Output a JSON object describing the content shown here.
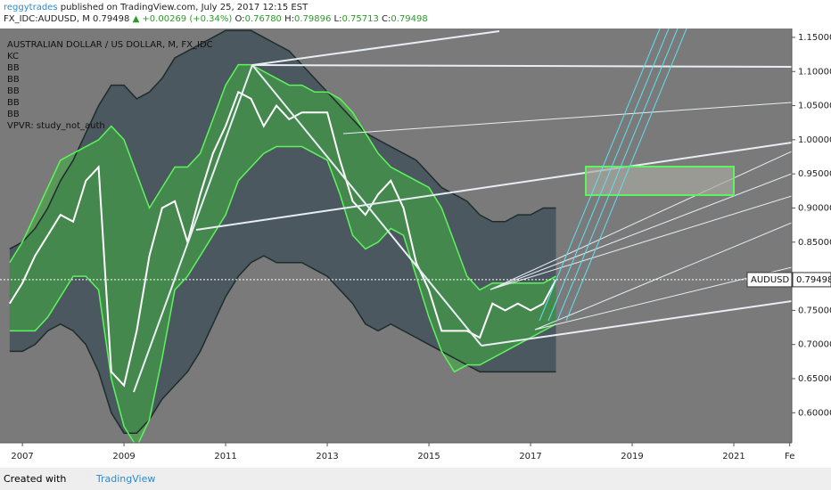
{
  "header": {
    "author": "reggytrades",
    "published": "published on TradingView.com, July 25, 2017 12:15 EST",
    "symbol": "FX_IDC:AUDUSD, M",
    "price": "0.79498",
    "change": "▲ +0.00269 (+0.34%)",
    "ohlc": [
      {
        "label": "O:",
        "value": "0.76780"
      },
      {
        "label": "H:",
        "value": "0.79896"
      },
      {
        "label": "L:",
        "value": "0.75713"
      },
      {
        "label": "C:",
        "value": "0.79498"
      }
    ]
  },
  "legend_panel": [
    "AUSTRALIAN DOLLAR / US DOLLAR, M, FX_IDC",
    "KC",
    "BB",
    "BB",
    "BB",
    "BB",
    "BB",
    "VPVR: study_not_auth"
  ],
  "chart_data": {
    "type": "line",
    "x": [
      2006.75,
      2007,
      2007.25,
      2007.5,
      2007.75,
      2008,
      2008.25,
      2008.5,
      2008.75,
      2009,
      2009.25,
      2009.5,
      2009.75,
      2010,
      2010.25,
      2010.5,
      2010.75,
      2011,
      2011.25,
      2011.5,
      2011.75,
      2012,
      2012.25,
      2012.5,
      2012.75,
      2013,
      2013.25,
      2013.5,
      2013.75,
      2014,
      2014.25,
      2014.5,
      2014.75,
      2015,
      2015.25,
      2015.5,
      2015.75,
      2016,
      2016.25,
      2016.5,
      2016.75,
      2017,
      2017.25,
      2017.5
    ],
    "series": [
      {
        "name": "KC upper",
        "color": "#1e2c2c",
        "values": [
          0.84,
          0.85,
          0.87,
          0.9,
          0.94,
          0.97,
          1.01,
          1.05,
          1.08,
          1.08,
          1.06,
          1.07,
          1.09,
          1.12,
          1.13,
          1.14,
          1.15,
          1.16,
          1.16,
          1.16,
          1.15,
          1.14,
          1.13,
          1.11,
          1.09,
          1.07,
          1.05,
          1.03,
          1.01,
          1.0,
          0.99,
          0.98,
          0.97,
          0.95,
          0.93,
          0.92,
          0.91,
          0.89,
          0.88,
          0.88,
          0.89,
          0.89,
          0.9,
          0.9
        ]
      },
      {
        "name": "KC lower",
        "color": "#1e2c2c",
        "values": [
          0.69,
          0.69,
          0.7,
          0.72,
          0.73,
          0.72,
          0.7,
          0.66,
          0.6,
          0.57,
          0.57,
          0.59,
          0.62,
          0.64,
          0.66,
          0.69,
          0.73,
          0.77,
          0.8,
          0.82,
          0.83,
          0.82,
          0.82,
          0.82,
          0.81,
          0.8,
          0.78,
          0.76,
          0.73,
          0.72,
          0.73,
          0.72,
          0.71,
          0.7,
          0.69,
          0.68,
          0.67,
          0.66,
          0.66,
          0.66,
          0.66,
          0.66,
          0.66,
          0.66
        ]
      },
      {
        "name": "BB upper",
        "color": "#5cf55c",
        "values": [
          0.82,
          0.85,
          0.89,
          0.93,
          0.97,
          0.98,
          0.99,
          1.0,
          1.02,
          1.0,
          0.95,
          0.9,
          0.93,
          0.96,
          0.96,
          0.98,
          1.03,
          1.08,
          1.11,
          1.11,
          1.1,
          1.09,
          1.08,
          1.08,
          1.07,
          1.07,
          1.06,
          1.04,
          1.01,
          0.98,
          0.96,
          0.95,
          0.94,
          0.93,
          0.9,
          0.85,
          0.8,
          0.78,
          0.79,
          0.79,
          0.79,
          0.79,
          0.79,
          0.8
        ]
      },
      {
        "name": "BB lower",
        "color": "#5cf55c",
        "values": [
          0.72,
          0.72,
          0.72,
          0.74,
          0.77,
          0.8,
          0.8,
          0.78,
          0.65,
          0.58,
          0.55,
          0.59,
          0.68,
          0.78,
          0.8,
          0.83,
          0.86,
          0.89,
          0.94,
          0.96,
          0.98,
          0.99,
          0.99,
          0.99,
          0.98,
          0.97,
          0.92,
          0.86,
          0.84,
          0.85,
          0.87,
          0.86,
          0.8,
          0.74,
          0.69,
          0.66,
          0.67,
          0.67,
          0.68,
          0.69,
          0.7,
          0.71,
          0.72,
          0.73
        ]
      },
      {
        "name": "AUDUSD",
        "color": "#ffffff",
        "values": [
          0.76,
          0.79,
          0.83,
          0.86,
          0.89,
          0.88,
          0.94,
          0.96,
          0.66,
          0.64,
          0.72,
          0.83,
          0.9,
          0.91,
          0.85,
          0.92,
          0.98,
          1.02,
          1.07,
          1.06,
          1.02,
          1.05,
          1.03,
          1.04,
          1.04,
          1.04,
          0.97,
          0.91,
          0.89,
          0.92,
          0.94,
          0.9,
          0.82,
          0.78,
          0.72,
          0.72,
          0.72,
          0.71,
          0.76,
          0.75,
          0.76,
          0.75,
          0.76,
          0.795
        ]
      }
    ],
    "xlim": [
      2006.56,
      2022.14
    ],
    "xticks": [
      2007,
      2009,
      2011,
      2013,
      2015,
      2017,
      2019,
      2021,
      {
        "value": 2022.1,
        "label": "Fe"
      }
    ],
    "ylim": [
      0.556,
      1.163
    ],
    "yticks": [
      {
        "value": 0.6,
        "label": "0.60000"
      },
      {
        "value": 0.65,
        "label": "0.65000"
      },
      {
        "value": 0.7,
        "label": "0.70000"
      },
      {
        "value": 0.75,
        "label": "0.75000"
      },
      {
        "value": 0.8,
        "label": "0.80000"
      },
      {
        "value": 0.85,
        "label": "0.85000"
      },
      {
        "value": 0.9,
        "label": "0.90000"
      },
      {
        "value": 0.95,
        "label": "0.95000"
      },
      {
        "value": 1.0,
        "label": "1.00000"
      },
      {
        "value": 1.05,
        "label": "1.05000"
      },
      {
        "value": 1.1,
        "label": "1.10000"
      },
      {
        "value": 1.15,
        "label": "1.15000"
      }
    ],
    "price_tag": {
      "label": "AUDUSD",
      "value": 0.79498
    }
  },
  "footer": {
    "created": "Created with",
    "brand": "TradingView"
  }
}
